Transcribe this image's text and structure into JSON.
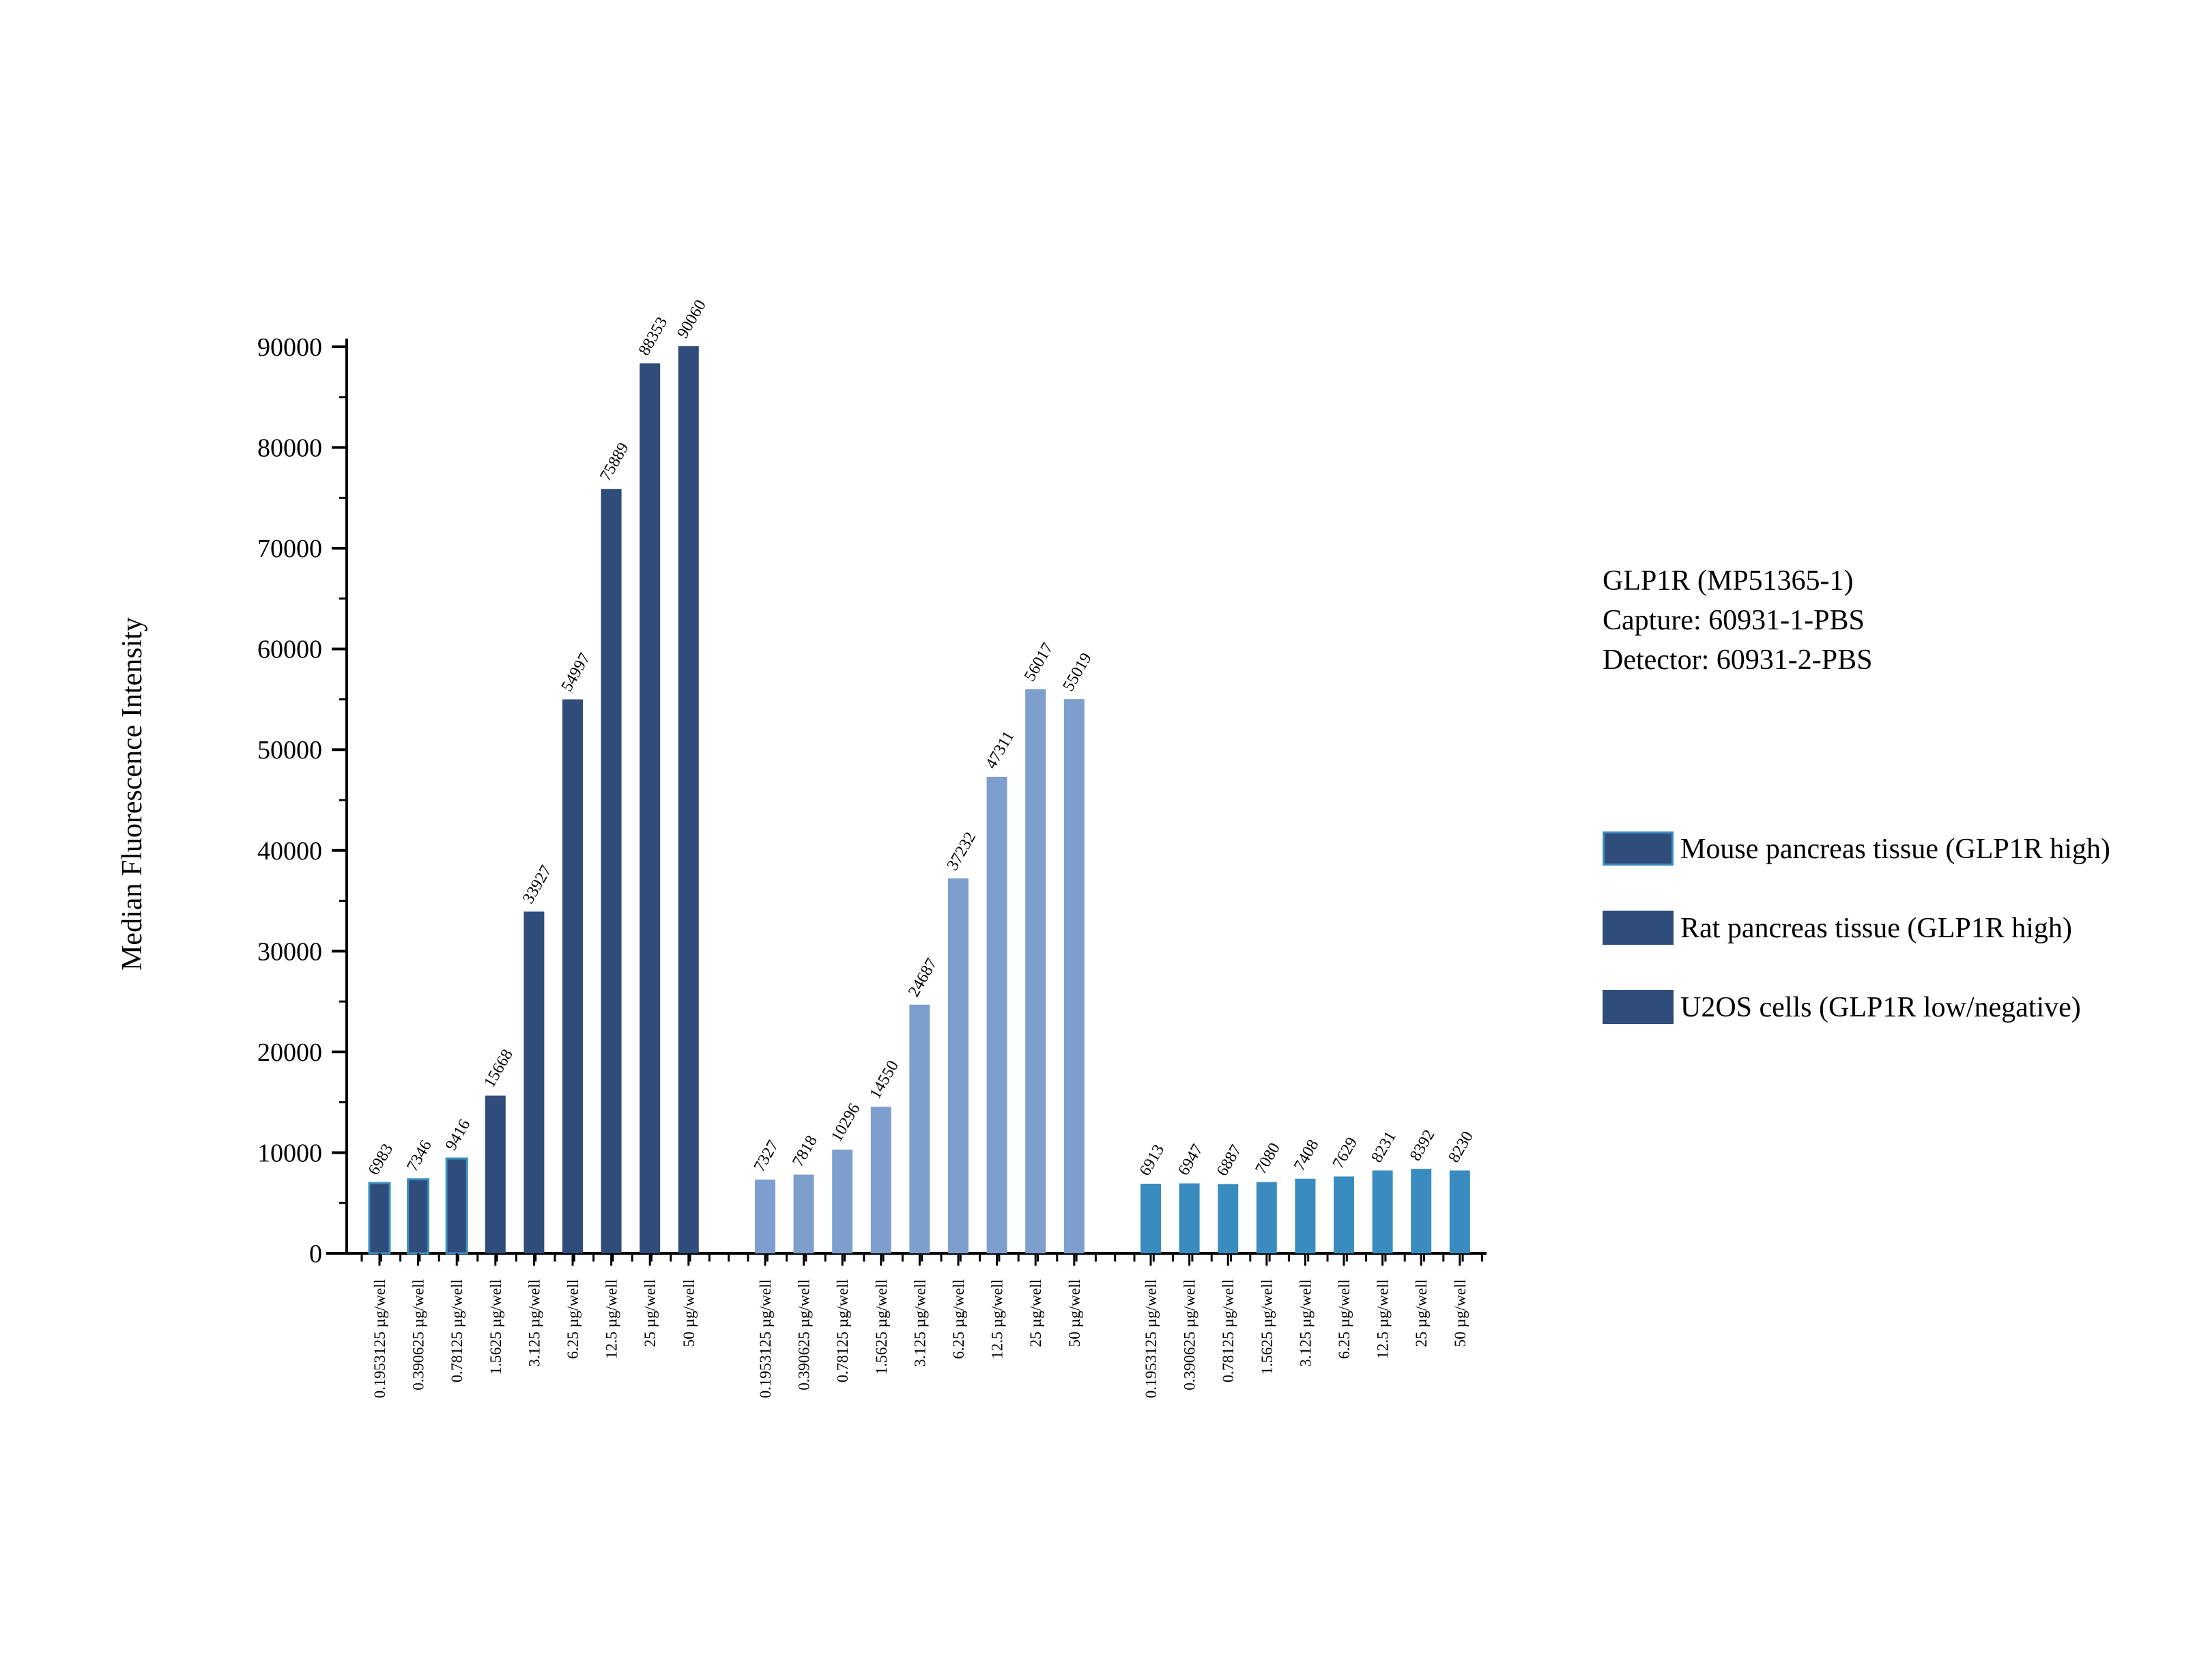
{
  "info": {
    "line1": "GLP1R (MP51365-1)",
    "line2": "Capture: 60931-1-PBS",
    "line3": "Detector: 60931-2-PBS"
  },
  "legend": [
    {
      "label": "Mouse pancreas tissue (GLP1R high)",
      "color": "#2f4c7a",
      "border": "#3a8fc0"
    },
    {
      "label": "Rat pancreas tissue (GLP1R high)",
      "color": "#2f4c7a",
      "border": "#2f4c7a"
    },
    {
      "label": "U2OS cells (GLP1R low/negative)",
      "color": "#2f4c7a",
      "border": "#2f4c7a"
    }
  ],
  "chart_data": {
    "type": "bar",
    "ylabel": "Median Fluorescence Intensity",
    "ylim": [
      0,
      90000
    ],
    "yticks": [
      0,
      10000,
      20000,
      30000,
      40000,
      50000,
      60000,
      70000,
      80000,
      90000
    ],
    "categories": [
      "0.1953125 µg/well",
      "0.390625 µg/well",
      "0.78125 µg/well",
      "1.5625 µg/well",
      "3.125 µg/well",
      "6.25 µg/well",
      "12.5 µg/well",
      "25 µg/well",
      "50 µg/well"
    ],
    "groups": [
      {
        "color": "#2f4c7a",
        "values": [
          6983,
          7346,
          9416,
          15668,
          33927,
          54997,
          75889,
          88353,
          90060
        ],
        "labels": [
          "6983",
          "7346",
          "9416",
          "15668",
          "33927",
          "54997",
          "75889",
          "88353",
          "90060"
        ]
      },
      {
        "color": "#7e9fcd",
        "values": [
          7327,
          7818,
          10296,
          14550,
          24687,
          37232,
          47311,
          56017,
          55019
        ],
        "labels": [
          "7327",
          "7818",
          "10296",
          "14550",
          "24687",
          "37232",
          "47311",
          "56017",
          "55019"
        ]
      },
      {
        "color": "#3a8cc0",
        "values": [
          6913,
          6947,
          6887,
          7080,
          7408,
          7629,
          8231,
          8392,
          8230
        ],
        "labels": [
          "6913",
          "6947",
          "6887",
          "7080",
          "7408",
          "7629",
          "8231",
          "8392",
          "8230"
        ]
      }
    ]
  }
}
